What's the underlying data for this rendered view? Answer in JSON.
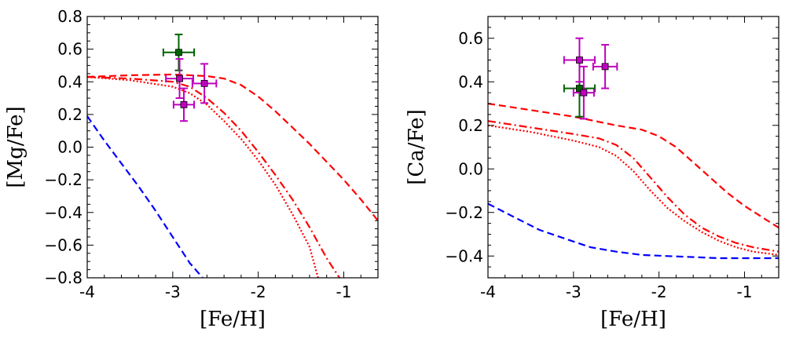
{
  "chart_data": [
    {
      "type": "line",
      "panel": "left",
      "title": "",
      "xlabel": "[Fe/H]",
      "ylabel": "[Mg/Fe]",
      "xlim": [
        -4,
        -0.6
      ],
      "ylim": [
        -0.8,
        0.8
      ],
      "x_ticks": [
        -4,
        -3,
        -2,
        -1
      ],
      "x_tick_labels": [
        "-4",
        "-3",
        "-2",
        "-1"
      ],
      "y_ticks": [
        -0.8,
        -0.6,
        -0.4,
        -0.2,
        0.0,
        0.2,
        0.4,
        0.6,
        0.8
      ],
      "y_tick_labels": [
        "−0.8",
        "−0.6",
        "−0.4",
        "−0.2",
        "0.0",
        "0.2",
        "0.4",
        "0.6",
        "0.8"
      ],
      "grid": false,
      "series": [
        {
          "name": "red-dashed",
          "style": "dashed",
          "color": "#ff0000",
          "x": [
            -4.0,
            -3.5,
            -3.0,
            -2.8,
            -2.6,
            -2.4,
            -2.2,
            -2.0,
            -1.8,
            -1.6,
            -1.4,
            -1.2,
            -1.0,
            -0.8,
            -0.6
          ],
          "y": [
            0.43,
            0.44,
            0.445,
            0.44,
            0.435,
            0.42,
            0.38,
            0.31,
            0.22,
            0.12,
            0.02,
            -0.09,
            -0.2,
            -0.32,
            -0.45
          ]
        },
        {
          "name": "red-dashdot",
          "style": "dashdot",
          "color": "#ff0000",
          "x": [
            -4.0,
            -3.5,
            -3.0,
            -2.8,
            -2.6,
            -2.4,
            -2.2,
            -2.0,
            -1.8,
            -1.6,
            -1.4,
            -1.2,
            -1.05
          ],
          "y": [
            0.43,
            0.42,
            0.4,
            0.37,
            0.3,
            0.21,
            0.1,
            -0.03,
            -0.17,
            -0.32,
            -0.49,
            -0.68,
            -0.8
          ]
        },
        {
          "name": "red-dotted",
          "style": "dotted",
          "color": "#ff0000",
          "x": [
            -4.0,
            -3.5,
            -3.0,
            -2.8,
            -2.6,
            -2.4,
            -2.2,
            -2.0,
            -1.8,
            -1.6,
            -1.4,
            -1.3
          ],
          "y": [
            0.43,
            0.41,
            0.37,
            0.33,
            0.26,
            0.16,
            0.05,
            -0.08,
            -0.23,
            -0.41,
            -0.61,
            -0.8
          ]
        },
        {
          "name": "blue-dashed",
          "style": "dashed",
          "color": "#0000ff",
          "x": [
            -4.0,
            -3.8,
            -3.6,
            -3.4,
            -3.2,
            -3.0,
            -2.8,
            -2.65
          ],
          "y": [
            0.19,
            0.04,
            -0.1,
            -0.24,
            -0.39,
            -0.55,
            -0.71,
            -0.8
          ]
        }
      ],
      "points": [
        {
          "x": -2.93,
          "y": 0.58,
          "xerr": 0.18,
          "yerr": 0.11,
          "color": "#006400"
        },
        {
          "x": -2.92,
          "y": 0.42,
          "xerr": 0.16,
          "yerr": 0.12,
          "color": "#bf00bf"
        },
        {
          "x": -2.63,
          "y": 0.39,
          "xerr": 0.14,
          "yerr": 0.12,
          "color": "#bf00bf"
        },
        {
          "x": -2.87,
          "y": 0.26,
          "xerr": 0.12,
          "yerr": 0.1,
          "color": "#bf00bf"
        }
      ]
    },
    {
      "type": "line",
      "panel": "right",
      "title": "",
      "xlabel": "[Fe/H]",
      "ylabel": "[Ca/Fe]",
      "xlim": [
        -4,
        -0.6
      ],
      "ylim": [
        -0.5,
        0.7
      ],
      "x_ticks": [
        -4,
        -3,
        -2,
        -1
      ],
      "x_tick_labels": [
        "-4",
        "-3",
        "-2",
        "-1"
      ],
      "y_ticks": [
        -0.4,
        -0.2,
        0.0,
        0.2,
        0.4,
        0.6
      ],
      "y_tick_labels": [
        "−0.4",
        "−0.2",
        "0.0",
        "0.2",
        "0.4",
        "0.6"
      ],
      "grid": false,
      "series": [
        {
          "name": "red-dashed",
          "style": "dashed",
          "color": "#ff0000",
          "x": [
            -4.0,
            -3.5,
            -3.0,
            -2.5,
            -2.2,
            -2.0,
            -1.8,
            -1.6,
            -1.4,
            -1.2,
            -1.0,
            -0.8,
            -0.6
          ],
          "y": [
            0.3,
            0.27,
            0.24,
            0.2,
            0.18,
            0.15,
            0.1,
            0.03,
            -0.04,
            -0.11,
            -0.17,
            -0.22,
            -0.27
          ]
        },
        {
          "name": "red-dashdot",
          "style": "dashdot",
          "color": "#ff0000",
          "x": [
            -4.0,
            -3.5,
            -3.0,
            -2.7,
            -2.5,
            -2.3,
            -2.1,
            -1.9,
            -1.7,
            -1.5,
            -1.3,
            -1.1,
            -0.9,
            -0.6
          ],
          "y": [
            0.22,
            0.19,
            0.16,
            0.14,
            0.11,
            0.05,
            -0.04,
            -0.13,
            -0.21,
            -0.27,
            -0.31,
            -0.34,
            -0.36,
            -0.38
          ]
        },
        {
          "name": "red-dotted",
          "style": "dotted",
          "color": "#ff0000",
          "x": [
            -4.0,
            -3.5,
            -3.0,
            -2.7,
            -2.5,
            -2.3,
            -2.1,
            -1.9,
            -1.7,
            -1.5,
            -1.3,
            -1.1,
            -0.9,
            -0.6
          ],
          "y": [
            0.2,
            0.17,
            0.13,
            0.1,
            0.06,
            -0.01,
            -0.1,
            -0.18,
            -0.24,
            -0.29,
            -0.33,
            -0.36,
            -0.38,
            -0.395
          ]
        },
        {
          "name": "blue-dashed",
          "style": "dashed",
          "color": "#0000ff",
          "x": [
            -4.0,
            -3.7,
            -3.4,
            -3.1,
            -2.8,
            -2.5,
            -2.2,
            -1.9,
            -1.6,
            -1.3,
            -1.0,
            -0.6
          ],
          "y": [
            -0.16,
            -0.22,
            -0.28,
            -0.32,
            -0.36,
            -0.38,
            -0.395,
            -0.4,
            -0.405,
            -0.41,
            -0.41,
            -0.41
          ]
        }
      ],
      "points": [
        {
          "x": -2.93,
          "y": 0.37,
          "xerr": 0.18,
          "yerr": 0.13,
          "color": "#006400"
        },
        {
          "x": -2.93,
          "y": 0.5,
          "xerr": 0.18,
          "yerr": 0.1,
          "color": "#bf00bf"
        },
        {
          "x": -2.63,
          "y": 0.47,
          "xerr": 0.14,
          "yerr": 0.1,
          "color": "#bf00bf"
        },
        {
          "x": -2.88,
          "y": 0.35,
          "xerr": 0.12,
          "yerr": 0.12,
          "color": "#bf00bf"
        }
      ]
    }
  ]
}
